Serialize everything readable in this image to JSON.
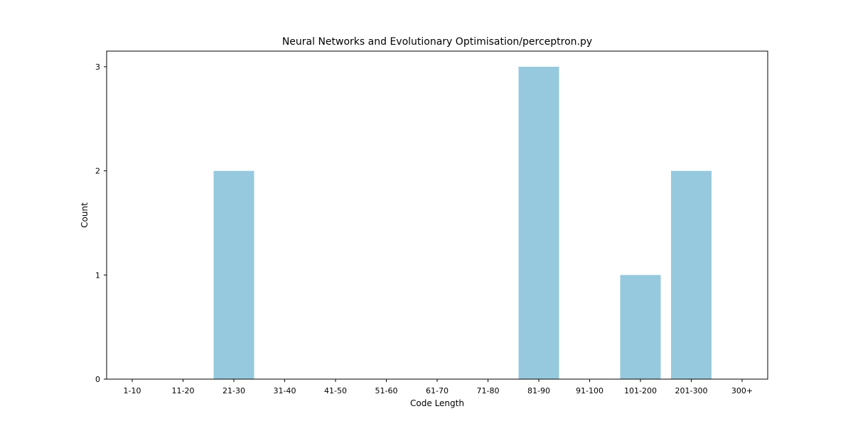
{
  "chart_data": {
    "type": "bar",
    "title": "Neural Networks and Evolutionary Optimisation/perceptron.py",
    "xlabel": "Code Length",
    "ylabel": "Count",
    "categories": [
      "1-10",
      "11-20",
      "21-30",
      "31-40",
      "41-50",
      "51-60",
      "61-70",
      "71-80",
      "81-90",
      "91-100",
      "101-200",
      "201-300",
      "300+"
    ],
    "values": [
      0,
      0,
      2,
      0,
      0,
      0,
      0,
      0,
      3,
      0,
      1,
      2,
      0
    ],
    "yticks": [
      0,
      1,
      2,
      3
    ],
    "ylim": [
      0,
      3.15
    ],
    "grid": false,
    "colors": {
      "bar": "#96c9dd",
      "axis": "#000000"
    }
  }
}
